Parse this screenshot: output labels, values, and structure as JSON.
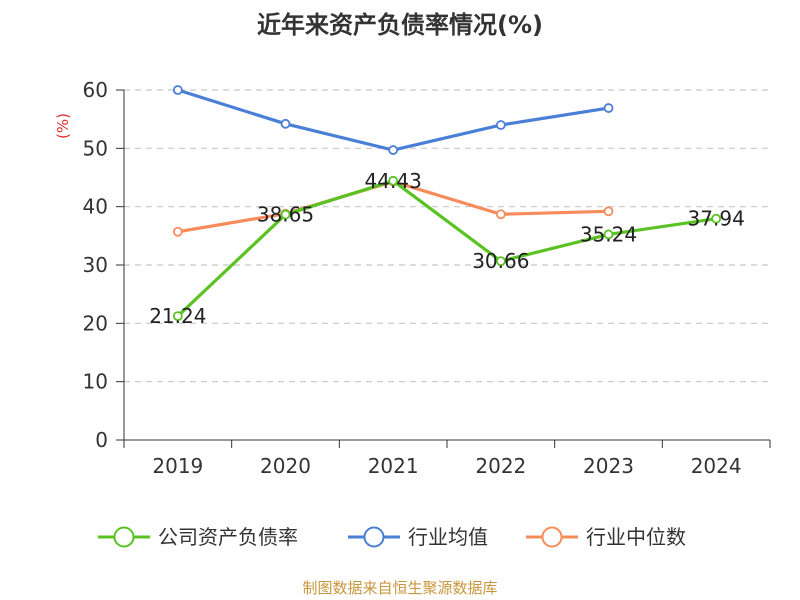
{
  "chart_data": {
    "type": "line",
    "title": "近年来资产负债率情况(%)",
    "ylabel": "(%)",
    "xlabel": "",
    "categories": [
      "2019",
      "2020",
      "2021",
      "2022",
      "2023",
      "2024"
    ],
    "ylim": [
      0,
      60
    ],
    "yticks": [
      0,
      10,
      20,
      30,
      40,
      50,
      60
    ],
    "grid": true,
    "legend_position": "bottom",
    "series": [
      {
        "name": "公司资产负债率",
        "color": "#5ac323",
        "values": [
          21.24,
          38.65,
          44.43,
          30.66,
          35.24,
          37.94
        ],
        "labels": [
          "21.24",
          "38.65",
          "44.43",
          "30.66",
          "35.24",
          "37.94"
        ],
        "show_labels": true
      },
      {
        "name": "行业均值",
        "color": "#4a7fd8",
        "values": [
          60.0,
          54.2,
          49.7,
          54.0,
          56.9,
          null
        ],
        "show_labels": false
      },
      {
        "name": "行业中位数",
        "color": "#f58c5a",
        "values": [
          35.7,
          38.8,
          44.3,
          38.7,
          39.2,
          null
        ],
        "show_labels": false
      }
    ]
  },
  "footer": {
    "source": "制图数据来自恒生聚源数据库"
  }
}
